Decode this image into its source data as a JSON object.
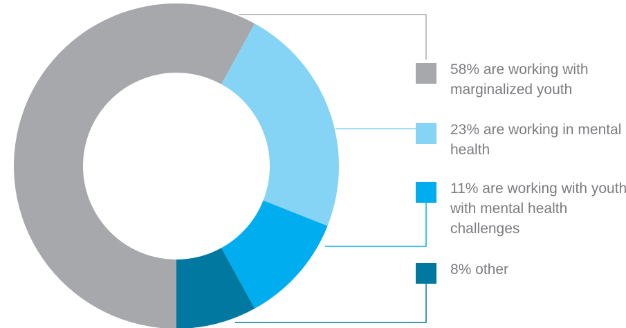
{
  "chart_data": {
    "type": "pie",
    "subtype": "donut",
    "legend_position": "right",
    "slices": [
      {
        "label": "58% are working with marginalized youth",
        "value": 58,
        "color": "#a7a8ab"
      },
      {
        "label": "23% are working in mental health",
        "value": 23,
        "color": "#85d4f5"
      },
      {
        "label": "11% are working with youth with mental health challenges",
        "value": 11,
        "color": "#00adee"
      },
      {
        "label": "8% other",
        "value": 8,
        "color": "#00789f"
      }
    ]
  }
}
